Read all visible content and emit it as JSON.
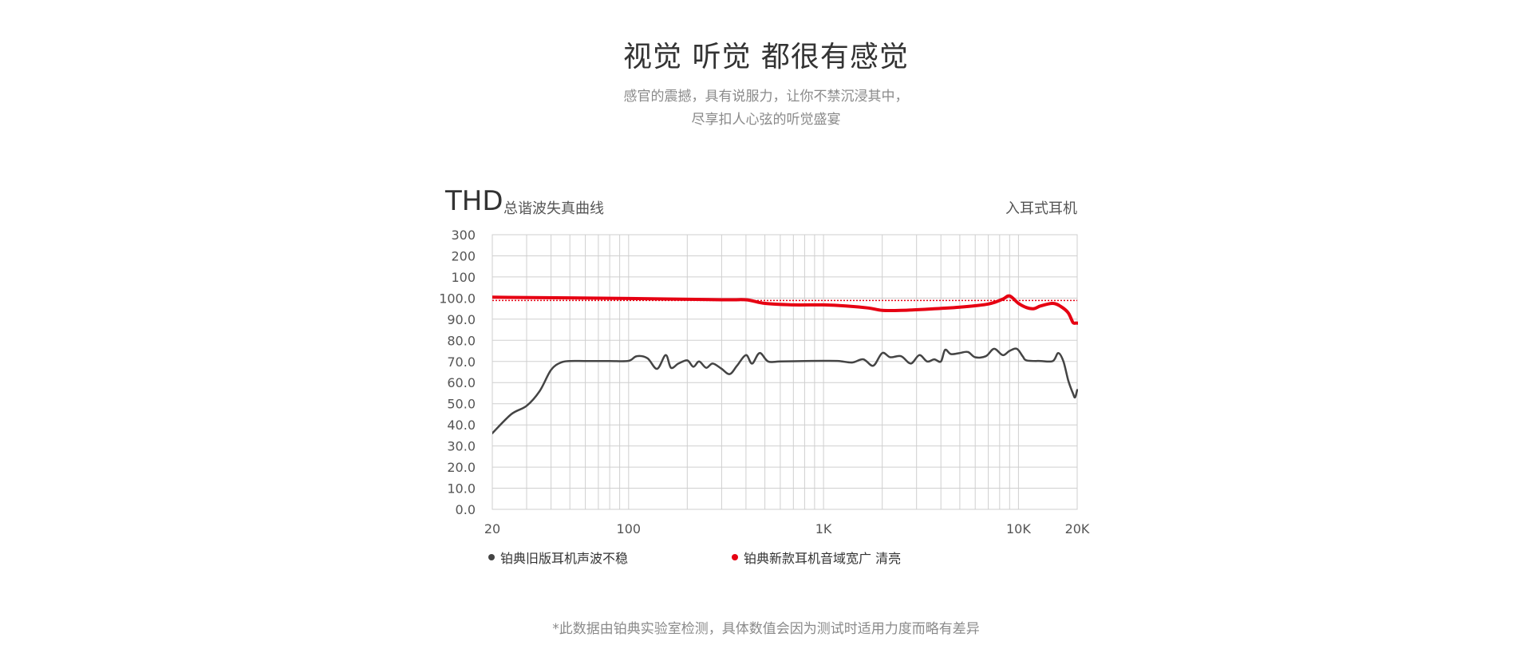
{
  "header": {
    "title": "视觉 听觉 都很有感觉",
    "subtitle_line1": "感官的震撼，具有说服力，让你不禁沉浸其中，",
    "subtitle_line2": "尽享扣人心弦的听觉盛宴"
  },
  "footnote": "*此数据由铂典实验室检测，具体数值会因为测试时适用力度而略有差异",
  "chart_data": {
    "type": "line",
    "title": "THD",
    "subtitle": "总谐波失真曲线",
    "corner_label": "入耳式耳机",
    "x_scale": "log",
    "xlim": [
      20,
      20000
    ],
    "x_ticks": [
      {
        "value": 20,
        "label": "20"
      },
      {
        "value": 100,
        "label": "100"
      },
      {
        "value": 1000,
        "label": "1K"
      },
      {
        "value": 10000,
        "label": "10K"
      },
      {
        "value": 20000,
        "label": "20K"
      }
    ],
    "x_gridlines": [
      20,
      30,
      40,
      50,
      60,
      70,
      80,
      90,
      100,
      200,
      300,
      400,
      500,
      600,
      700,
      800,
      900,
      1000,
      2000,
      3000,
      4000,
      5000,
      6000,
      7000,
      8000,
      9000,
      10000,
      20000
    ],
    "y_tick_labels": [
      "300",
      "200",
      "100",
      "100.0",
      "90.0",
      "80.0",
      "70.0",
      "60.0",
      "50.0",
      "40.0",
      "30.0",
      "20.0",
      "10.0",
      "0.0"
    ],
    "grid": true,
    "reference_line": {
      "y_label": "100.0",
      "style": "dotted",
      "color": "#e60012"
    },
    "legend_position": "bottom",
    "series": [
      {
        "name": "铂典旧版耳机声波不稳",
        "color": "#444444",
        "points": [
          [
            20,
            36
          ],
          [
            25,
            45
          ],
          [
            30,
            49
          ],
          [
            35,
            56
          ],
          [
            40,
            66
          ],
          [
            45,
            69.5
          ],
          [
            50,
            70.2
          ],
          [
            60,
            70.2
          ],
          [
            80,
            70.2
          ],
          [
            100,
            70.3
          ],
          [
            110,
            72.5
          ],
          [
            125,
            71.5
          ],
          [
            140,
            66.5
          ],
          [
            155,
            73
          ],
          [
            165,
            67
          ],
          [
            180,
            69
          ],
          [
            200,
            70.5
          ],
          [
            215,
            67.5
          ],
          [
            230,
            70
          ],
          [
            250,
            67
          ],
          [
            270,
            69
          ],
          [
            300,
            66.5
          ],
          [
            330,
            64
          ],
          [
            360,
            68
          ],
          [
            400,
            73
          ],
          [
            430,
            69
          ],
          [
            470,
            74
          ],
          [
            520,
            70
          ],
          [
            600,
            70
          ],
          [
            800,
            70.2
          ],
          [
            1000,
            70.3
          ],
          [
            1200,
            70.2
          ],
          [
            1400,
            69.5
          ],
          [
            1600,
            71
          ],
          [
            1800,
            68
          ],
          [
            2000,
            74
          ],
          [
            2200,
            72
          ],
          [
            2500,
            72.5
          ],
          [
            2800,
            69
          ],
          [
            3100,
            73
          ],
          [
            3400,
            70
          ],
          [
            3700,
            71
          ],
          [
            4000,
            70
          ],
          [
            4200,
            75.5
          ],
          [
            4500,
            73.5
          ],
          [
            5000,
            74
          ],
          [
            5500,
            74.5
          ],
          [
            6000,
            72
          ],
          [
            6800,
            72.5
          ],
          [
            7500,
            76
          ],
          [
            8300,
            73
          ],
          [
            9000,
            75
          ],
          [
            9800,
            76
          ],
          [
            10500,
            72.5
          ],
          [
            11000,
            70.5
          ],
          [
            13000,
            70.2
          ],
          [
            15000,
            70.2
          ],
          [
            16000,
            74
          ],
          [
            17000,
            70
          ],
          [
            18000,
            61
          ],
          [
            19000,
            55
          ],
          [
            19500,
            53
          ],
          [
            20000,
            56.5
          ]
        ]
      },
      {
        "name": "铂典新款耳机音域宽广  清亮",
        "color": "#e60012",
        "points": [
          [
            20,
            100.4
          ],
          [
            100,
            99.8
          ],
          [
            300,
            99.2
          ],
          [
            400,
            99.2
          ],
          [
            500,
            97.5
          ],
          [
            700,
            96.8
          ],
          [
            1000,
            96.8
          ],
          [
            1300,
            96.3
          ],
          [
            1700,
            95.3
          ],
          [
            2000,
            94.2
          ],
          [
            2500,
            94.2
          ],
          [
            3500,
            94.8
          ],
          [
            5000,
            95.7
          ],
          [
            7000,
            97.2
          ],
          [
            8300,
            99.5
          ],
          [
            9000,
            101
          ],
          [
            10000,
            97.5
          ],
          [
            11000,
            95.5
          ],
          [
            12000,
            95
          ],
          [
            13000,
            96.3
          ],
          [
            15000,
            97.5
          ],
          [
            16500,
            96
          ],
          [
            18000,
            93
          ],
          [
            19000,
            88.5
          ],
          [
            19700,
            88.2
          ],
          [
            20300,
            88.2
          ],
          [
            20900,
            89
          ],
          [
            21500,
            90.5
          ],
          [
            22000,
            88
          ],
          [
            22600,
            82.5
          ]
        ]
      }
    ]
  }
}
